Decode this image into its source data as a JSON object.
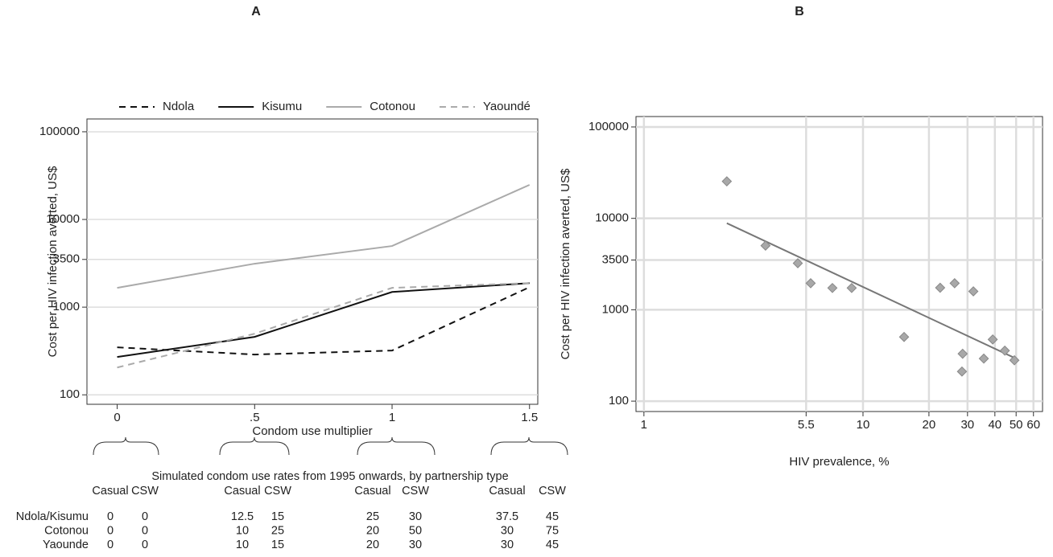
{
  "chart_data": [
    {
      "type": "line",
      "title": "A",
      "xlabel": "Condom use multiplier",
      "ylabel": "Cost per HIV infection averted, US$",
      "x": [
        0,
        0.5,
        1,
        1.5
      ],
      "series": [
        {
          "name": "Ndola",
          "color": "#111111",
          "linestyle": "dashed",
          "values": [
            348,
            288,
            320,
            1690
          ]
        },
        {
          "name": "Kisumu",
          "color": "#111111",
          "linestyle": "solid",
          "values": [
            270,
            458,
            1490,
            1880
          ]
        },
        {
          "name": "Cotonou",
          "color": "#aaaaaa",
          "linestyle": "solid",
          "values": [
            1660,
            3130,
            4980,
            24800
          ]
        },
        {
          "name": "Yaoundé",
          "color": "#aaaaaa",
          "linestyle": "dashed",
          "values": [
            205,
            498,
            1660,
            1880
          ]
        }
      ],
      "xlim": [
        -0.11,
        1.53
      ],
      "xticks": [
        0,
        {
          "value": 0.5,
          "label": ".5"
        },
        1,
        1.5
      ],
      "ylim": [
        78,
        140000
      ],
      "yticks": [
        100,
        1000,
        3500,
        10000,
        100000
      ],
      "ylog": true,
      "grid": "y",
      "legend": "top"
    },
    {
      "type": "scatter",
      "title": "B",
      "xlabel": "HIV prevalence, %",
      "ylabel": "Cost per HIV infection averted, US$",
      "x": [
        2.39,
        3.59,
        5.04,
        5.77,
        7.25,
        8.88,
        15.4,
        22.5,
        26.2,
        28.3,
        28.5,
        31.9,
        35.6,
        39.1,
        44.4,
        49.1
      ],
      "values": [
        25400,
        5030,
        3230,
        1950,
        1730,
        1730,
        504,
        1740,
        1950,
        211,
        330,
        1590,
        292,
        473,
        357,
        280
      ],
      "color": "#a8a8a8",
      "fit": {
        "x": [
          2.39,
          49.1
        ],
        "values": [
          8850,
          298
        ],
        "color": "#777777"
      },
      "xlim": [
        0.92,
        66
      ],
      "xticks": [
        1,
        5.5,
        10,
        20,
        30,
        40,
        50,
        60
      ],
      "xlog": true,
      "ylim": [
        77,
        130000
      ],
      "yticks": [
        100,
        1000,
        3500,
        10000,
        100000
      ],
      "ylog": true,
      "grid": "both"
    }
  ],
  "table": {
    "title": "Simulated condom use rates from 1995 onwards, by partnership type",
    "columns": [
      "Casual",
      "CSW",
      "Casual",
      "CSW",
      "Casual",
      "CSW",
      "Casual",
      "CSW"
    ],
    "rows": [
      {
        "label": "Ndola/Kisumu",
        "values": [
          0,
          0,
          12.5,
          15,
          25,
          30,
          37.5,
          45
        ]
      },
      {
        "label": "Cotonou",
        "values": [
          0,
          0,
          10,
          25,
          20,
          50,
          30,
          75
        ]
      },
      {
        "label": "Yaounde",
        "values": [
          0,
          0,
          10,
          15,
          20,
          30,
          30,
          45
        ]
      }
    ]
  }
}
